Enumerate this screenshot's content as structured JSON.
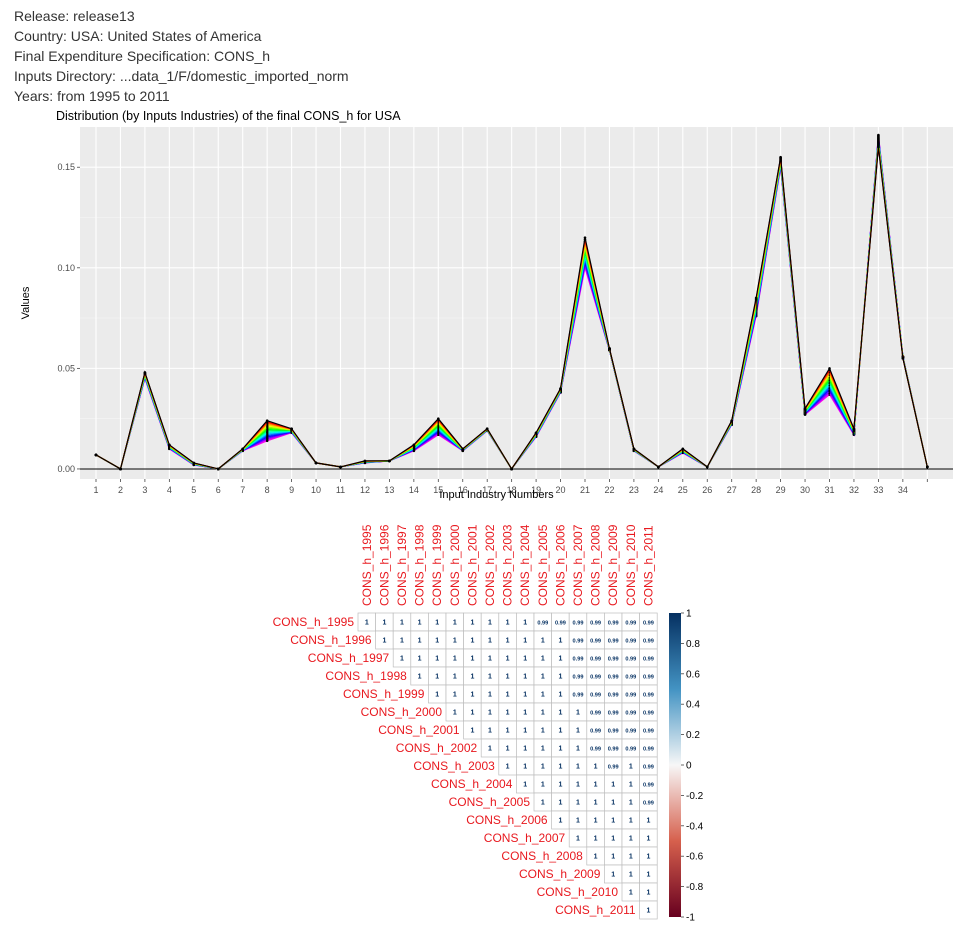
{
  "meta": {
    "release": "Release: release13",
    "country": "Country: USA: United States of America",
    "spec": "Final Expenditure Specification: CONS_h",
    "inputs": "Inputs Directory: ...data_1/F/domestic_imported_norm",
    "years": "Years: from 1995 to 2011"
  },
  "chart_data": [
    {
      "type": "line",
      "title": "Distribution (by Inputs Industries) of the final CONS_h for  USA",
      "xlabel": "Input Industry Numbers",
      "ylabel": "Values",
      "x": [
        1,
        2,
        3,
        4,
        5,
        6,
        7,
        8,
        9,
        10,
        11,
        12,
        13,
        14,
        15,
        16,
        17,
        18,
        19,
        20,
        21,
        22,
        23,
        24,
        25,
        26,
        27,
        28,
        29,
        30,
        31,
        32,
        33,
        34,
        35
      ],
      "x_tick_labels": [
        "1",
        "2",
        "3",
        "4",
        "5",
        "6",
        "7",
        "8",
        "9",
        "10",
        "11",
        "12",
        "13",
        "14",
        "15",
        "16",
        "17",
        "18",
        "19",
        "20",
        "21",
        "22",
        "23",
        "24",
        "25",
        "26",
        "27",
        "28",
        "29",
        "30",
        "31",
        "32",
        "33",
        "34"
      ],
      "y_ticks": [
        0.0,
        0.05,
        0.1,
        0.15
      ],
      "y_tick_labels": [
        "0.00",
        "0.05",
        "0.10",
        "0.15"
      ],
      "ylim": [
        -0.005,
        0.17
      ],
      "grid": true,
      "background": "#ebebeb",
      "series_years": [
        1995,
        1996,
        1997,
        1998,
        1999,
        2000,
        2001,
        2002,
        2003,
        2004,
        2005,
        2006,
        2007,
        2008,
        2009,
        2010,
        2011
      ],
      "series_colors": [
        "#000000",
        "#ff0000",
        "#ff6a00",
        "#ffbf00",
        "#eaff00",
        "#95ff00",
        "#40ff00",
        "#00ff15",
        "#00ff6a",
        "#00ffbf",
        "#00eaff",
        "#0095ff",
        "#0040ff",
        "#1500ff",
        "#6a00ff",
        "#bf00ff",
        "#ff00ea"
      ],
      "series_first": [
        0.007,
        0.0,
        0.048,
        0.012,
        0.003,
        0.0,
        0.01,
        0.024,
        0.02,
        0.003,
        0.001,
        0.004,
        0.004,
        0.012,
        0.025,
        0.01,
        0.02,
        0.0,
        0.018,
        0.04,
        0.115,
        0.06,
        0.01,
        0.001,
        0.01,
        0.001,
        0.024,
        0.085,
        0.155,
        0.03,
        0.05,
        0.02,
        0.16,
        0.055,
        0.001
      ],
      "series_last": [
        0.007,
        0.0,
        0.045,
        0.01,
        0.002,
        0.0,
        0.009,
        0.014,
        0.018,
        0.003,
        0.001,
        0.003,
        0.004,
        0.009,
        0.017,
        0.009,
        0.019,
        0.0,
        0.016,
        0.038,
        0.1,
        0.059,
        0.009,
        0.001,
        0.008,
        0.001,
        0.022,
        0.076,
        0.15,
        0.027,
        0.037,
        0.017,
        0.166,
        0.056,
        0.001
      ]
    },
    {
      "type": "heatmap",
      "title": "",
      "labels": [
        "CONS_h_1995",
        "CONS_h_1996",
        "CONS_h_1997",
        "CONS_h_1998",
        "CONS_h_1999",
        "CONS_h_2000",
        "CONS_h_2001",
        "CONS_h_2002",
        "CONS_h_2003",
        "CONS_h_2004",
        "CONS_h_2005",
        "CONS_h_2006",
        "CONS_h_2007",
        "CONS_h_2008",
        "CONS_h_2009",
        "CONS_h_2010",
        "CONS_h_2011"
      ],
      "values": [
        [
          "1",
          "1",
          "1",
          "1",
          "1",
          "1",
          "1",
          "1",
          "1",
          "1",
          "0.99",
          "0.99",
          "0.99",
          "0.99",
          "0.99",
          "0.99",
          "0.99"
        ],
        [
          null,
          "1",
          "1",
          "1",
          "1",
          "1",
          "1",
          "1",
          "1",
          "1",
          "1",
          "1",
          "0.99",
          "0.99",
          "0.99",
          "0.99",
          "0.99"
        ],
        [
          null,
          null,
          "1",
          "1",
          "1",
          "1",
          "1",
          "1",
          "1",
          "1",
          "1",
          "1",
          "0.99",
          "0.99",
          "0.99",
          "0.99",
          "0.99"
        ],
        [
          null,
          null,
          null,
          "1",
          "1",
          "1",
          "1",
          "1",
          "1",
          "1",
          "1",
          "1",
          "0.99",
          "0.99",
          "0.99",
          "0.99",
          "0.99"
        ],
        [
          null,
          null,
          null,
          null,
          "1",
          "1",
          "1",
          "1",
          "1",
          "1",
          "1",
          "1",
          "0.99",
          "0.99",
          "0.99",
          "0.99",
          "0.99"
        ],
        [
          null,
          null,
          null,
          null,
          null,
          "1",
          "1",
          "1",
          "1",
          "1",
          "1",
          "1",
          "1",
          "0.99",
          "0.99",
          "0.99",
          "0.99"
        ],
        [
          null,
          null,
          null,
          null,
          null,
          null,
          "1",
          "1",
          "1",
          "1",
          "1",
          "1",
          "1",
          "0.99",
          "0.99",
          "0.99",
          "0.99"
        ],
        [
          null,
          null,
          null,
          null,
          null,
          null,
          null,
          "1",
          "1",
          "1",
          "1",
          "1",
          "1",
          "0.99",
          "0.99",
          "0.99",
          "0.99"
        ],
        [
          null,
          null,
          null,
          null,
          null,
          null,
          null,
          null,
          "1",
          "1",
          "1",
          "1",
          "1",
          "1",
          "0.99",
          "1",
          "0.99"
        ],
        [
          null,
          null,
          null,
          null,
          null,
          null,
          null,
          null,
          null,
          "1",
          "1",
          "1",
          "1",
          "1",
          "1",
          "1",
          "0.99"
        ],
        [
          null,
          null,
          null,
          null,
          null,
          null,
          null,
          null,
          null,
          null,
          "1",
          "1",
          "1",
          "1",
          "1",
          "1",
          "0.99"
        ],
        [
          null,
          null,
          null,
          null,
          null,
          null,
          null,
          null,
          null,
          null,
          null,
          "1",
          "1",
          "1",
          "1",
          "1",
          "1"
        ],
        [
          null,
          null,
          null,
          null,
          null,
          null,
          null,
          null,
          null,
          null,
          null,
          null,
          "1",
          "1",
          "1",
          "1",
          "1"
        ],
        [
          null,
          null,
          null,
          null,
          null,
          null,
          null,
          null,
          null,
          null,
          null,
          null,
          null,
          "1",
          "1",
          "1",
          "1"
        ],
        [
          null,
          null,
          null,
          null,
          null,
          null,
          null,
          null,
          null,
          null,
          null,
          null,
          null,
          null,
          "1",
          "1",
          "1"
        ],
        [
          null,
          null,
          null,
          null,
          null,
          null,
          null,
          null,
          null,
          null,
          null,
          null,
          null,
          null,
          null,
          "1",
          "1"
        ],
        [
          null,
          null,
          null,
          null,
          null,
          null,
          null,
          null,
          null,
          null,
          null,
          null,
          null,
          null,
          null,
          null,
          "1"
        ]
      ],
      "label_color": "#e8191f",
      "colorbar_ticks": [
        1,
        0.8,
        0.6,
        0.4,
        0.2,
        0,
        -0.2,
        -0.4,
        -0.6,
        -0.8,
        -1
      ],
      "colorbar_tick_labels": [
        "1",
        "0.8",
        "0.6",
        "0.4",
        "0.2",
        "0",
        "-0.2",
        "-0.4",
        "-0.6",
        "-0.8",
        "-1"
      ],
      "colorscale": [
        "#67001f",
        "#f7f7f7",
        "#053061"
      ]
    }
  ]
}
